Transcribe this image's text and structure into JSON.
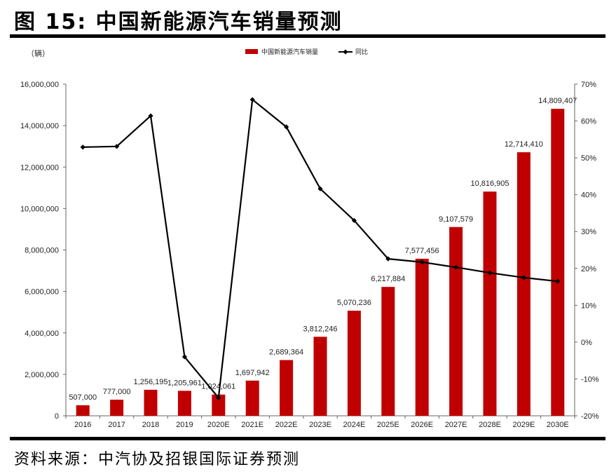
{
  "header": {
    "figure_title": "图 15: 中国新能源汽车销量预测"
  },
  "footer": {
    "source": "资料来源：中汽协及招银国际证券预测"
  },
  "chart_data": {
    "type": "bar+line",
    "title": "中国新能源汽车销量预测",
    "unit_label_left": "（辆）",
    "categories": [
      "2016",
      "2017",
      "2018",
      "2019",
      "2020E",
      "2021E",
      "2022E",
      "2023E",
      "2024E",
      "2025E",
      "2026E",
      "2027E",
      "2028E",
      "2029E",
      "2030E"
    ],
    "series": [
      {
        "name": "中国新能源汽车销量",
        "type": "bar",
        "axis": "left",
        "color": "#C00000",
        "values": [
          507000,
          777000,
          1256195,
          1205961,
          1024061,
          1697942,
          2689364,
          3812246,
          5070236,
          6217884,
          7577456,
          9107579,
          10816905,
          12714410,
          14809407
        ],
        "labels": [
          "507,000",
          "777,000",
          "1,256,195",
          "1,205,961",
          "1,024,061",
          "1,697,942",
          "2,689,364",
          "3,812,246",
          "5,070,236",
          "6,217,884",
          "7,577,456",
          "9,107,579",
          "10,816,905",
          "12,714,410",
          "14,809,407"
        ]
      },
      {
        "name": "同比",
        "type": "line",
        "axis": "right",
        "color": "#000000",
        "marker": "diamond",
        "values": [
          0.529,
          0.531,
          0.614,
          -0.04,
          -0.151,
          0.658,
          0.584,
          0.416,
          0.33,
          0.226,
          0.217,
          0.203,
          0.188,
          0.175,
          0.165
        ]
      }
    ],
    "left_axis": {
      "ylim": [
        0,
        16000000
      ],
      "ticks": [
        0,
        2000000,
        4000000,
        6000000,
        8000000,
        10000000,
        12000000,
        14000000,
        16000000
      ],
      "tick_labels": [
        "0",
        "2,000,000",
        "4,000,000",
        "6,000,000",
        "8,000,000",
        "10,000,000",
        "12,000,000",
        "14,000,000",
        "16,000,000"
      ]
    },
    "right_axis": {
      "ylim": [
        -0.2,
        0.7
      ],
      "ticks": [
        -0.2,
        -0.1,
        0,
        0.1,
        0.2,
        0.3,
        0.4,
        0.5,
        0.6,
        0.7
      ],
      "tick_labels": [
        "-20%",
        "-10%",
        "0%",
        "10%",
        "20%",
        "30%",
        "40%",
        "50%",
        "60%",
        "70%"
      ]
    },
    "legend": {
      "position": "top",
      "entries": [
        "中国新能源汽车销量",
        "同比"
      ]
    },
    "grid": false
  }
}
